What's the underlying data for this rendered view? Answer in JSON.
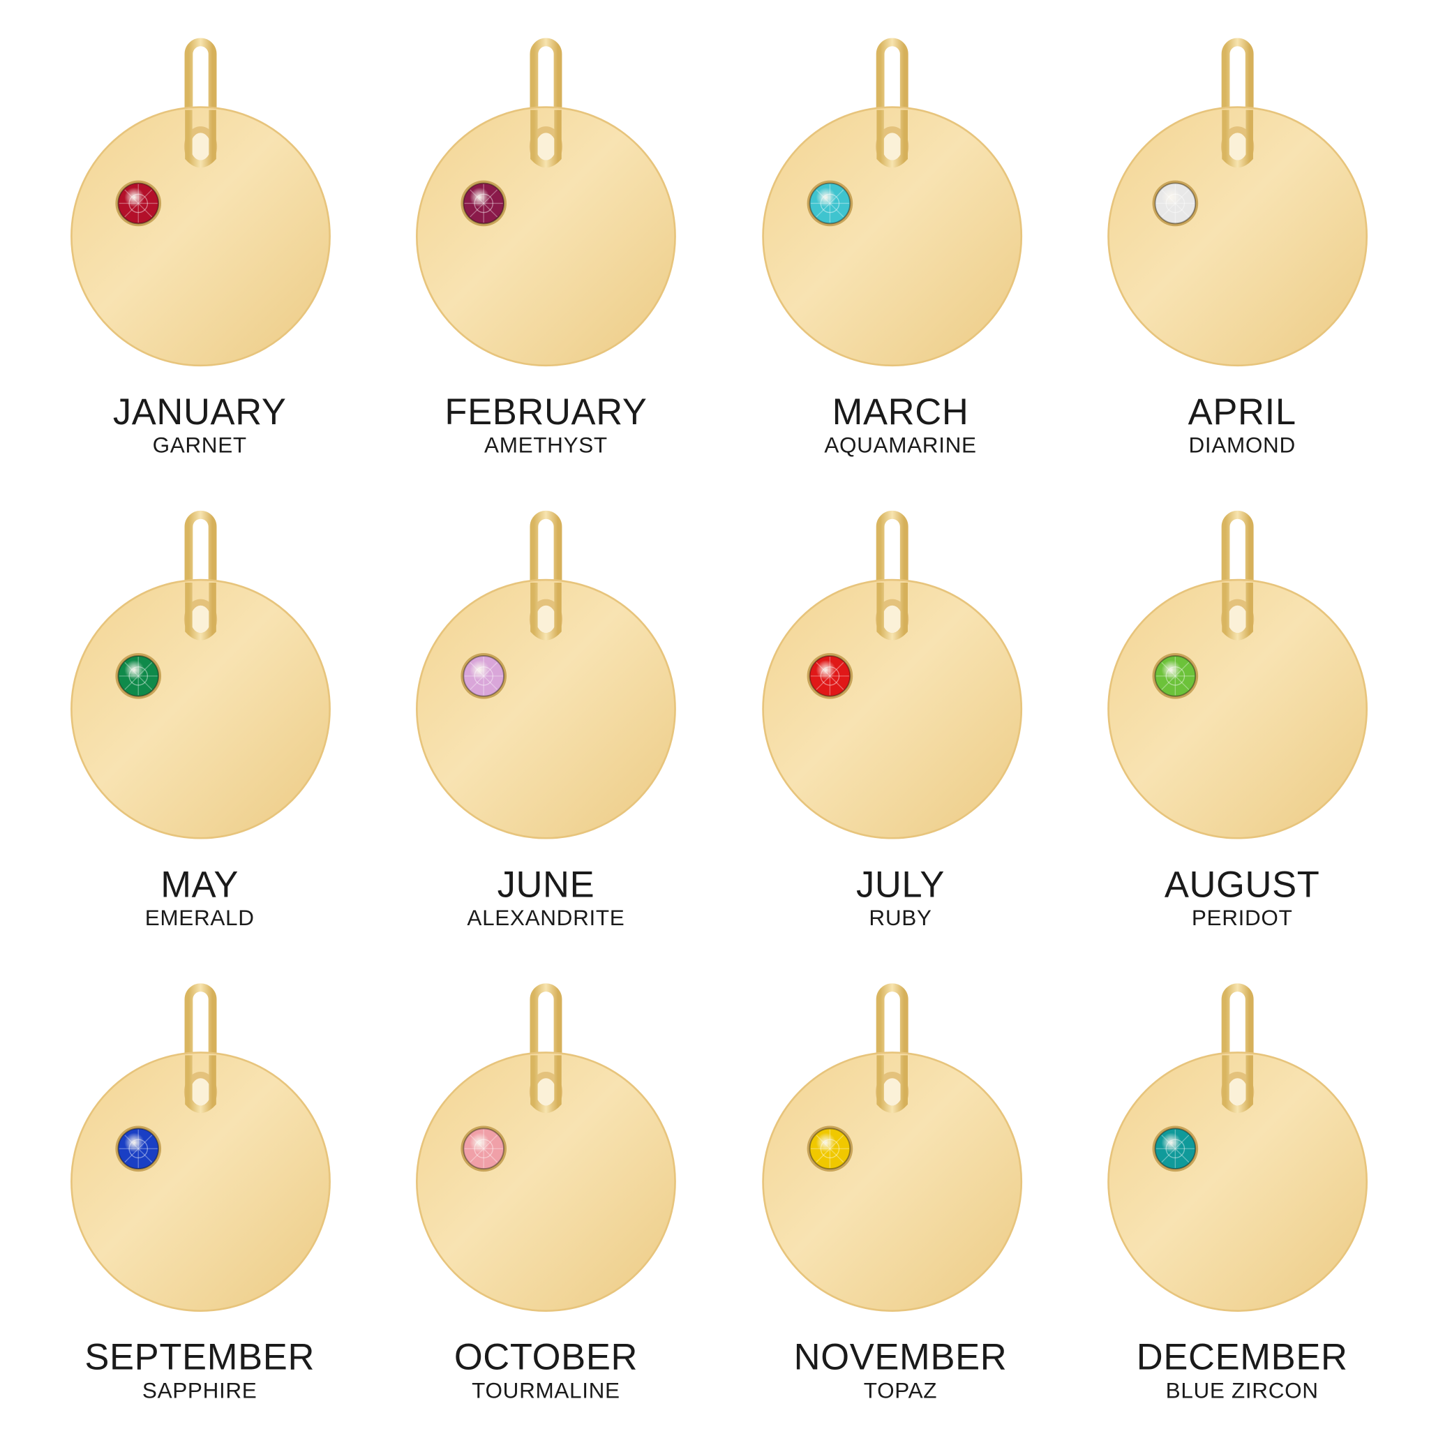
{
  "items": [
    {
      "month": "JANUARY",
      "stone": "GARNET"
    },
    {
      "month": "FEBRUARY",
      "stone": "AMETHYST"
    },
    {
      "month": "MARCH",
      "stone": "AQUAMARINE"
    },
    {
      "month": "APRIL",
      "stone": "DIAMOND"
    },
    {
      "month": "MAY",
      "stone": "EMERALD"
    },
    {
      "month": "JUNE",
      "stone": "ALEXANDRITE"
    },
    {
      "month": "JULY",
      "stone": "RUBY"
    },
    {
      "month": "AUGUST",
      "stone": "PERIDOT"
    },
    {
      "month": "SEPTEMBER",
      "stone": "SAPPHIRE"
    },
    {
      "month": "OCTOBER",
      "stone": "TOURMALINE"
    },
    {
      "month": "NOVEMBER",
      "stone": "TOPAZ"
    },
    {
      "month": "DECEMBER",
      "stone": "BLUE ZIRCON"
    }
  ]
}
